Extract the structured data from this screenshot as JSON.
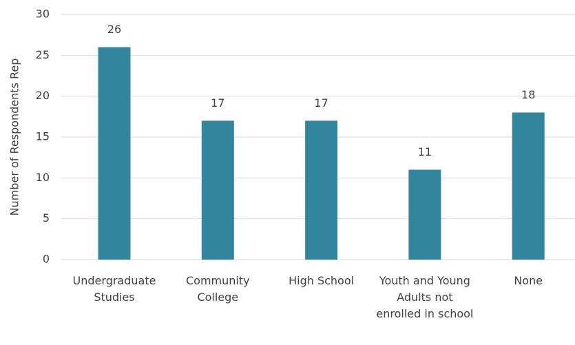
{
  "chart_data": {
    "type": "bar",
    "y_label": "Number of Respondents Rep",
    "categories": [
      "Undergraduate Studies",
      "Community College",
      "High School",
      "Youth and Young Adults not enrolled in school",
      "None"
    ],
    "values": [
      26,
      17,
      17,
      11,
      18
    ],
    "color": "#31859c",
    "ylim": [
      0,
      30
    ],
    "yticks": [
      0,
      5,
      10,
      15,
      20,
      25,
      30
    ],
    "grid": true
  }
}
